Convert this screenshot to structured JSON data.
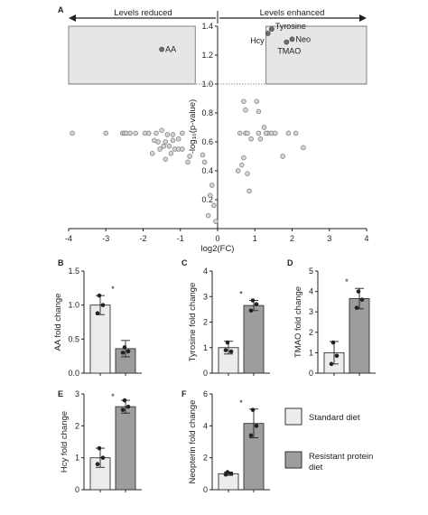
{
  "figure": {
    "panel_labels": [
      "A",
      "B",
      "C",
      "D",
      "E",
      "F"
    ],
    "significance_marker": "*"
  },
  "legend": {
    "items": [
      {
        "label": "Standard diet",
        "color": "#ececec"
      },
      {
        "label": "Resistant protein diet",
        "color": "#9d9d9d"
      }
    ]
  },
  "chart_data": [
    {
      "panel": "A",
      "type": "scatter",
      "xlabel": "log2(FC)",
      "ylabel": "-log₁₀(p-value)",
      "xlim": [
        -4,
        4
      ],
      "ylim": [
        0,
        1.4
      ],
      "xticks": [
        -4,
        -3,
        -2,
        -1,
        0,
        1,
        2,
        3,
        4
      ],
      "yticks": [
        0.2,
        0.4,
        0.6,
        0.8,
        1.0,
        1.2,
        1.4
      ],
      "threshold_y": 1.0,
      "direction_labels": {
        "left": "Levels reduced",
        "right": "Levels enhanced"
      },
      "highlighted": [
        {
          "label": "AA",
          "x": -1.5,
          "y": 1.24
        },
        {
          "label": "Tyrosine",
          "x": 1.45,
          "y": 1.38
        },
        {
          "label": "Hcy",
          "x": 1.35,
          "y": 1.35
        },
        {
          "label": "Neo",
          "x": 2.0,
          "y": 1.31
        },
        {
          "label": "TMAO",
          "x": 1.85,
          "y": 1.29
        }
      ],
      "points": [
        [
          -3.9,
          0.66
        ],
        [
          -3.0,
          0.66
        ],
        [
          -2.55,
          0.66
        ],
        [
          -2.5,
          0.66
        ],
        [
          -2.45,
          0.66
        ],
        [
          -2.35,
          0.66
        ],
        [
          -2.2,
          0.66
        ],
        [
          -1.95,
          0.66
        ],
        [
          -1.85,
          0.66
        ],
        [
          -1.65,
          0.66
        ],
        [
          -1.5,
          0.68
        ],
        [
          -1.35,
          0.65
        ],
        [
          -1.2,
          0.65
        ],
        [
          -0.95,
          0.66
        ],
        [
          -1.05,
          0.62
        ],
        [
          -1.2,
          0.61
        ],
        [
          -1.4,
          0.6
        ],
        [
          -1.6,
          0.6
        ],
        [
          -1.7,
          0.61
        ],
        [
          -1.3,
          0.57
        ],
        [
          -1.45,
          0.57
        ],
        [
          -1.55,
          0.55
        ],
        [
          -1.15,
          0.55
        ],
        [
          -1.05,
          0.55
        ],
        [
          -0.95,
          0.55
        ],
        [
          -1.75,
          0.52
        ],
        [
          -1.25,
          0.52
        ],
        [
          -1.4,
          0.48
        ],
        [
          -0.75,
          0.5
        ],
        [
          -0.8,
          0.46
        ],
        [
          -0.4,
          0.51
        ],
        [
          -0.35,
          0.46
        ],
        [
          -0.15,
          0.3
        ],
        [
          -0.2,
          0.23
        ],
        [
          -0.1,
          0.16
        ],
        [
          -0.25,
          0.09
        ],
        [
          -0.05,
          0.05
        ],
        [
          0.6,
          0.66
        ],
        [
          0.75,
          0.66
        ],
        [
          0.8,
          0.66
        ],
        [
          0.9,
          0.62
        ],
        [
          1.1,
          0.66
        ],
        [
          1.15,
          0.62
        ],
        [
          1.25,
          0.7
        ],
        [
          1.35,
          0.66
        ],
        [
          1.45,
          0.66
        ],
        [
          1.55,
          0.66
        ],
        [
          1.3,
          0.66
        ],
        [
          1.9,
          0.66
        ],
        [
          2.1,
          0.66
        ],
        [
          2.3,
          0.56
        ],
        [
          1.75,
          0.5
        ],
        [
          0.7,
          0.49
        ],
        [
          0.75,
          0.82
        ],
        [
          1.1,
          0.81
        ],
        [
          0.7,
          0.88
        ],
        [
          1.05,
          0.88
        ],
        [
          0.55,
          0.4
        ],
        [
          0.65,
          0.44
        ],
        [
          0.8,
          0.38
        ],
        [
          0.85,
          0.26
        ]
      ]
    },
    {
      "panel": "B",
      "type": "bar",
      "ylabel": "AA fold change",
      "ylim": [
        0,
        1.5
      ],
      "yticks": [
        0.0,
        0.5,
        1.0,
        1.5
      ],
      "categories": [
        "Standard diet",
        "Resistant protein diet"
      ],
      "values": [
        1.0,
        0.36
      ],
      "errors": [
        0.14,
        0.12
      ],
      "points": [
        [
          1.14,
          1.0,
          0.88
        ],
        [
          0.38,
          0.32,
          0.3
        ]
      ]
    },
    {
      "panel": "C",
      "type": "bar",
      "ylabel": "Tyrosine fold change",
      "ylim": [
        0,
        4
      ],
      "yticks": [
        0,
        1,
        2,
        3,
        4
      ],
      "categories": [
        "Standard diet",
        "Resistant protein diet"
      ],
      "values": [
        1.0,
        2.65
      ],
      "errors": [
        0.25,
        0.2
      ],
      "points": [
        [
          1.2,
          0.85,
          0.9
        ],
        [
          2.85,
          2.7,
          2.45
        ]
      ]
    },
    {
      "panel": "D",
      "type": "bar",
      "ylabel": "TMAO fold change",
      "ylim": [
        0,
        5
      ],
      "yticks": [
        0,
        1,
        2,
        3,
        4,
        5
      ],
      "categories": [
        "Standard diet",
        "Resistant protein diet"
      ],
      "values": [
        1.0,
        3.65
      ],
      "errors": [
        0.55,
        0.5
      ],
      "points": [
        [
          1.5,
          0.85,
          0.45
        ],
        [
          4.0,
          3.6,
          3.2
        ]
      ]
    },
    {
      "panel": "E",
      "type": "bar",
      "ylabel": "Hcy fold change",
      "ylim": [
        0,
        3
      ],
      "yticks": [
        0,
        1,
        2,
        3
      ],
      "categories": [
        "Standard diet",
        "Resistant protein diet"
      ],
      "values": [
        1.0,
        2.6
      ],
      "errors": [
        0.3,
        0.2
      ],
      "points": [
        [
          1.3,
          1.0,
          0.8
        ],
        [
          2.8,
          2.6,
          2.5
        ]
      ]
    },
    {
      "panel": "F",
      "type": "bar",
      "ylabel": "Neopterin fold change",
      "ylim": [
        0,
        6
      ],
      "yticks": [
        0,
        2,
        4,
        6
      ],
      "categories": [
        "Standard diet",
        "Resistant protein diet"
      ],
      "values": [
        1.0,
        4.15
      ],
      "errors": [
        0.1,
        0.9
      ],
      "points": [
        [
          1.1,
          1.0,
          0.95
        ],
        [
          5.0,
          4.0,
          3.4
        ]
      ]
    }
  ]
}
